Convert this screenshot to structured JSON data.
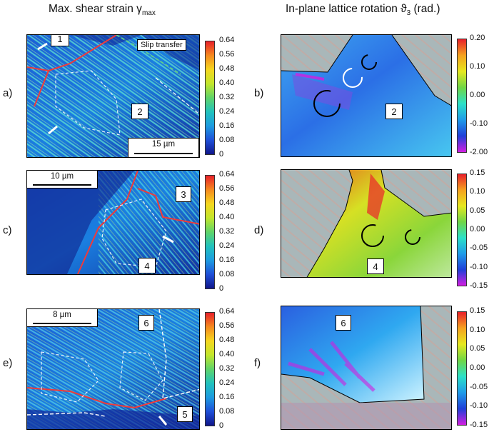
{
  "headers": {
    "left": "Max. shear strain  γ",
    "left_sub": "max",
    "right": "In-plane lattice rotation ϑ",
    "right_sub": "3",
    "right_tail": " (rad.)"
  },
  "panel_labels": [
    "a)",
    "b)",
    "c)",
    "d)",
    "e)",
    "f)"
  ],
  "shear_colorbar": {
    "ticks": [
      "0.64",
      "0.56",
      "0.48",
      "0.40",
      "0.32",
      "0.24",
      "0.16",
      "0.08",
      "0"
    ],
    "colors": [
      "#e8202a",
      "#f58a1f",
      "#f5d71f",
      "#c3e62c",
      "#5fd46a",
      "#21c2bd",
      "#1d9be0",
      "#1f4fd8",
      "#10168a"
    ]
  },
  "rotation_colorbars": [
    {
      "ticks": [
        "0.20",
        "0.10",
        "0.00",
        "-0.10",
        "-2.00"
      ]
    },
    {
      "ticks": [
        "0.15",
        "0.10",
        "0.05",
        "0.00",
        "-0.05",
        "-0.10",
        "-0.15"
      ]
    },
    {
      "ticks": [
        "0.15",
        "0.10",
        "0.05",
        "0.00",
        "-0.05",
        "-0.10",
        "-0.15"
      ]
    }
  ],
  "rotation_colors": [
    "#e8202a",
    "#f5a21f",
    "#e6e81f",
    "#6fd646",
    "#2be0c8",
    "#1f9be8",
    "#1f3fd8",
    "#d21fe0"
  ],
  "callouts": {
    "a_grain1": "1",
    "a_grain2": "2",
    "b_grain2": "2",
    "c_grain3": "3",
    "c_grain4": "4",
    "d_grain4": "4",
    "e_grain6": "6",
    "e_grain5": "5",
    "f_grain6": "6"
  },
  "scale_bars": {
    "a": "15 µm",
    "c": "10 µm",
    "e": "8 µm"
  },
  "slip_transfer": "Slip transfer"
}
